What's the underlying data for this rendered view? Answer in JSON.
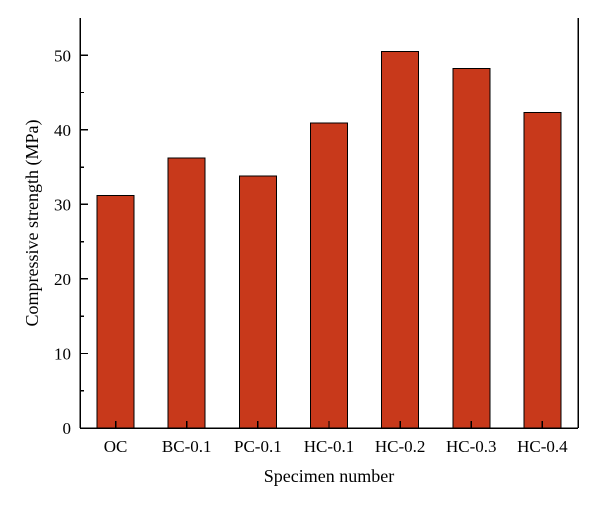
{
  "chart_data": {
    "type": "bar",
    "categories": [
      "OC",
      "BC-0.1",
      "PC-0.1",
      "HC-0.1",
      "HC-0.2",
      "HC-0.3",
      "HC-0.4"
    ],
    "values": [
      31.2,
      36.2,
      33.8,
      40.9,
      50.5,
      48.2,
      42.3
    ],
    "title": "",
    "xlabel": "Specimen number",
    "ylabel": "Compressive strength (MPa)",
    "ylim": [
      0,
      55
    ],
    "yticks": [
      0,
      10,
      20,
      30,
      40,
      50
    ],
    "bar_color": "#C8391B",
    "grid": false,
    "legend": "none"
  }
}
